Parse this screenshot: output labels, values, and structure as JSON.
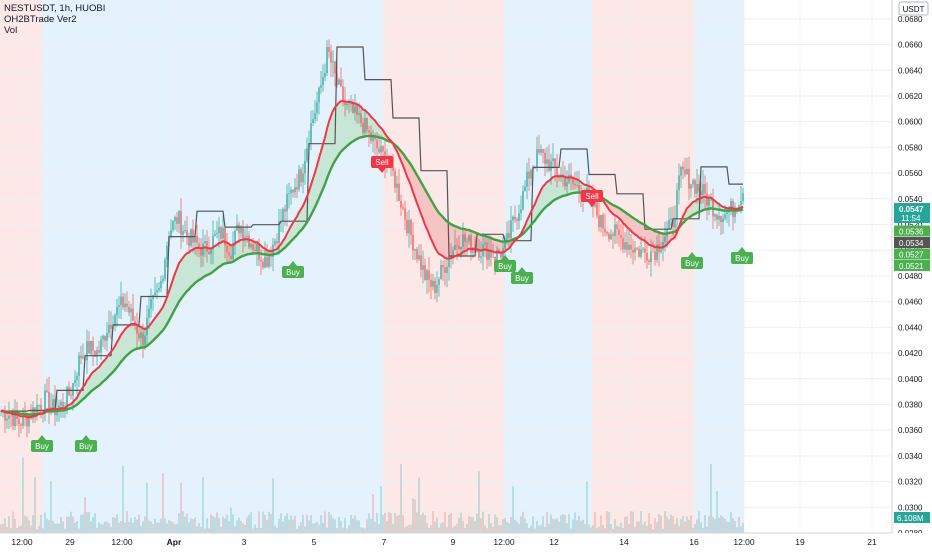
{
  "header": {
    "symbol_line": "NESTUSDT, 1h, HUOBI",
    "indicator_line": "OH2BTrade Ver2",
    "volume_line": "Vol"
  },
  "price_axis": {
    "currency": "USDT",
    "ticks": [
      "0.0680",
      "0.0660",
      "0.0640",
      "0.0620",
      "0.0600",
      "0.0580",
      "0.0560",
      "0.0540",
      "0.0520",
      "0.0500",
      "0.0480",
      "0.0460",
      "0.0440",
      "0.0420",
      "0.0400",
      "0.0380",
      "0.0360",
      "0.0340",
      "0.0320",
      "0.0300",
      "0.0280"
    ],
    "last_price_label": "0.0547",
    "countdown_label": "11:54",
    "tags": [
      {
        "label": "0.0536",
        "color": "#4caf50",
        "price": 0.0536
      },
      {
        "label": "0.0534",
        "color": "#555555",
        "price": 0.0534
      },
      {
        "label": "0.0527",
        "color": "#4caf50",
        "price": 0.0527
      },
      {
        "label": "0.0521",
        "color": "#4caf50",
        "price": 0.0521
      }
    ],
    "volume_label": "6.108M"
  },
  "time_axis": {
    "ticks": [
      "12:00",
      "29",
      "12:00",
      "Apr",
      "3",
      "5",
      "7",
      "9",
      "12:00",
      "12",
      "14",
      "16",
      "12:00",
      "19",
      "21"
    ]
  },
  "signals": [
    {
      "type": "Buy",
      "label": "Buy",
      "color": "#4caf50"
    },
    {
      "type": "Buy",
      "label": "Buy",
      "color": "#4caf50"
    },
    {
      "type": "Buy",
      "label": "Buy",
      "color": "#4caf50"
    },
    {
      "type": "Sell",
      "label": "Sell",
      "color": "#f23645"
    },
    {
      "type": "Buy",
      "label": "Buy",
      "color": "#4caf50"
    },
    {
      "type": "Buy",
      "label": "Buy",
      "color": "#4caf50"
    },
    {
      "type": "Sell",
      "label": "Sell",
      "color": "#f23645"
    },
    {
      "type": "Buy",
      "label": "Buy",
      "color": "#4caf50"
    },
    {
      "type": "Buy",
      "label": "Buy",
      "color": "#4caf50"
    }
  ],
  "colors": {
    "up": "#26a69a",
    "down": "#ef5350",
    "ma_fast": "#f23645",
    "ma_slow": "#43a047",
    "step_line": "#555555",
    "zone_buy": "#e3f2fd",
    "zone_sell": "#fde8e8"
  },
  "chart_data": {
    "type": "candlestick",
    "ylim": [
      0.028,
      0.069
    ],
    "price_series": [
      0.0375,
      0.0372,
      0.0366,
      0.037,
      0.0378,
      0.0384,
      0.0376,
      0.038,
      0.0392,
      0.0418,
      0.0424,
      0.042,
      0.044,
      0.0452,
      0.046,
      0.0445,
      0.043,
      0.0455,
      0.047,
      0.0515,
      0.0525,
      0.0512,
      0.0505,
      0.05,
      0.0508,
      0.0514,
      0.05,
      0.052,
      0.051,
      0.05,
      0.0492,
      0.0508,
      0.053,
      0.0548,
      0.056,
      0.0595,
      0.062,
      0.0655,
      0.063,
      0.0612,
      0.0605,
      0.0598,
      0.0585,
      0.0575,
      0.0568,
      0.0545,
      0.052,
      0.05,
      0.048,
      0.047,
      0.0485,
      0.05,
      0.051,
      0.0505,
      0.0502,
      0.05,
      0.0496,
      0.05,
      0.0522,
      0.054,
      0.0565,
      0.0575,
      0.0568,
      0.056,
      0.0555,
      0.055,
      0.0545,
      0.0535,
      0.052,
      0.0515,
      0.051,
      0.0505,
      0.05,
      0.0498,
      0.05,
      0.051,
      0.052,
      0.056,
      0.0555,
      0.0548,
      0.054,
      0.053,
      0.0528,
      0.0533,
      0.0547
    ]
  }
}
